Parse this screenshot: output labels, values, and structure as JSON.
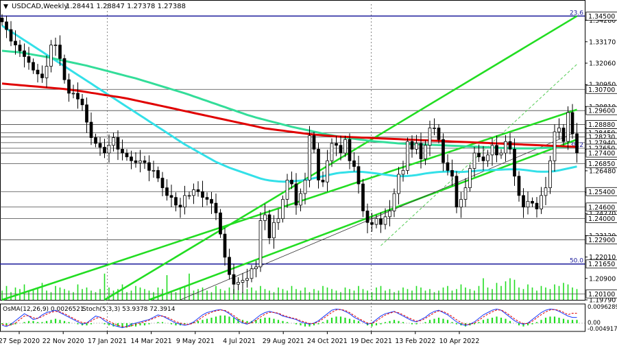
{
  "window": {
    "title_arrow": "▼",
    "symbol": "USDCAD,Weekly",
    "ohlc": "1.28441 1.28847 1.27378 1.27388"
  },
  "colors": {
    "background": "#ffffff",
    "grid": "#c8c8c8",
    "candle": "#000000",
    "ma_red": "#e00000",
    "ma_green": "#33dd99",
    "ma_cyan": "#33e0e8",
    "channel": "#22dd22",
    "fib_line": "#1a1a9a",
    "level_line": "#1a1a1a",
    "volume": "#22dd22",
    "price_box": "#ffffff"
  },
  "chart_data": {
    "type": "candlestick",
    "symbol": "USDCAD",
    "timeframe": "Weekly",
    "ylim": [
      1.1979,
      1.3512
    ],
    "time_labels": [
      "27 Sep 2020",
      "22 Nov 2020",
      "17 Jan 2021",
      "14 Mar 2021",
      "9 May 2021",
      "4 Jul 2021",
      "29 Aug 2021",
      "24 Oct 2021",
      "19 Dec 2021",
      "13 Feb 2022",
      "10 Apr 2022"
    ],
    "price_ticks": [
      "1.34280",
      "1.33170",
      "1.32060",
      "1.30950",
      "1.29810",
      "1.28700",
      "1.27590",
      "1.26480",
      "1.25370",
      "1.24270",
      "1.23120",
      "1.22010",
      "1.20900",
      "1.19790"
    ],
    "levels": [
      {
        "label": "1.34500",
        "value": 1.345
      },
      {
        "label": "1.30700",
        "value": 1.307
      },
      {
        "label": "1.29600",
        "value": 1.296
      },
      {
        "label": "1.28880",
        "value": 1.2888
      },
      {
        "label": "1.28450",
        "value": 1.2845
      },
      {
        "label": "1.28230",
        "value": 1.2823
      },
      {
        "label": "1.27940",
        "value": 1.2794
      },
      {
        "label": "1.27650",
        "value": 1.2765
      },
      {
        "label": "1.27400",
        "value": 1.274
      },
      {
        "label": "1.26850",
        "value": 1.2685
      },
      {
        "label": "1.25400",
        "value": 1.254
      },
      {
        "label": "1.24600",
        "value": 1.246
      },
      {
        "label": "1.24000",
        "value": 1.24
      },
      {
        "label": "1.22900",
        "value": 1.229
      },
      {
        "label": "1.21650",
        "value": 1.2165
      },
      {
        "label": "1.20100",
        "value": 1.201
      }
    ],
    "fib_labels": [
      {
        "label": "23.6",
        "value": 1.345
      },
      {
        "label": "38.2",
        "value": 1.2765
      },
      {
        "label": "50.0",
        "value": 1.2165
      }
    ],
    "closes": [
      1.342,
      1.338,
      1.332,
      1.33,
      1.327,
      1.324,
      1.321,
      1.317,
      1.315,
      1.313,
      1.319,
      1.33,
      1.33,
      1.323,
      1.312,
      1.305,
      1.305,
      1.302,
      1.299,
      1.29,
      1.282,
      1.279,
      1.277,
      1.274,
      1.278,
      1.282,
      1.276,
      1.274,
      1.272,
      1.27,
      1.269,
      1.27,
      1.269,
      1.265,
      1.265,
      1.261,
      1.256,
      1.252,
      1.251,
      1.247,
      1.246,
      1.252,
      1.252,
      1.255,
      1.254,
      1.251,
      1.25,
      1.248,
      1.243,
      1.232,
      1.22,
      1.211,
      1.206,
      1.207,
      1.208,
      1.209,
      1.214,
      1.215,
      1.239,
      1.242,
      1.23,
      1.238,
      1.24,
      1.25,
      1.26,
      1.258,
      1.247,
      1.253,
      1.26,
      1.283,
      1.276,
      1.26,
      1.259,
      1.27,
      1.279,
      1.278,
      1.274,
      1.281,
      1.27,
      1.267,
      1.258,
      1.244,
      1.238,
      1.237,
      1.24,
      1.237,
      1.241,
      1.244,
      1.253,
      1.263,
      1.265,
      1.28,
      1.276,
      1.279,
      1.271,
      1.278,
      1.287,
      1.287,
      1.281,
      1.269,
      1.265,
      1.262,
      1.246,
      1.25,
      1.256,
      1.266,
      1.274,
      1.272,
      1.27,
      1.273,
      1.278,
      1.273,
      1.274,
      1.28,
      1.276,
      1.262,
      1.252,
      1.246,
      1.249,
      1.248,
      1.245,
      1.252,
      1.256,
      1.27,
      1.285,
      1.287,
      1.28,
      1.295,
      1.284,
      1.274
    ],
    "ma_red": [
      1.31,
      1.3098,
      1.3096,
      1.3094,
      1.3092,
      1.309,
      1.3088,
      1.3086,
      1.3084,
      1.3082,
      1.308,
      1.3078,
      1.3076,
      1.3074,
      1.3072,
      1.3069,
      1.3066,
      1.3063,
      1.306,
      1.3056,
      1.3052,
      1.3049,
      1.3045,
      1.3041,
      1.3038,
      1.3034,
      1.3031,
      1.3027,
      1.3023,
      1.3018,
      1.3013,
      1.3008,
      1.3003,
      1.2998,
      1.2993,
      1.2988,
      1.2983,
      1.2978,
      1.2973,
      1.2968,
      1.2963,
      1.2958,
      1.2953,
      1.2948,
      1.2943,
      1.2938,
      1.2933,
      1.2928,
      1.2923,
      1.2918,
      1.2913,
      1.2908,
      1.2903,
      1.2898,
      1.2893,
      1.2888,
      1.2883,
      1.2878,
      1.2873,
      1.2868,
      1.2865,
      1.2862,
      1.2859,
      1.2856,
      1.2853,
      1.285,
      1.2847,
      1.2844,
      1.2841,
      1.2838,
      1.2836,
      1.2834,
      1.2832,
      1.283,
      1.2828,
      1.2826,
      1.2825,
      1.2824,
      1.2823,
      1.2822,
      1.2821,
      1.282,
      1.2819,
      1.2818,
      1.2817,
      1.2816,
      1.2815,
      1.2814,
      1.2813,
      1.2812,
      1.2811,
      1.281,
      1.2809,
      1.2808,
      1.2807,
      1.2806,
      1.2805,
      1.2804,
      1.2803,
      1.2802,
      1.2801,
      1.28,
      1.2799,
      1.2798,
      1.2797,
      1.2796,
      1.2795,
      1.2794,
      1.2793,
      1.2792,
      1.2791,
      1.279,
      1.2789,
      1.2788,
      1.2787,
      1.2786,
      1.2785,
      1.2784,
      1.2783,
      1.2782,
      1.2781,
      1.278,
      1.2779,
      1.2778,
      1.2777,
      1.2776,
      1.2775,
      1.2774,
      1.2773,
      1.2772
    ],
    "ma_green": [
      1.327,
      1.3268,
      1.3266,
      1.3264,
      1.3262,
      1.3258,
      1.3254,
      1.325,
      1.3246,
      1.3242,
      1.3238,
      1.3233,
      1.3228,
      1.3223,
      1.3218,
      1.3213,
      1.3208,
      1.3203,
      1.3198,
      1.3193,
      1.3187,
      1.3181,
      1.3175,
      1.3169,
      1.3163,
      1.3157,
      1.3151,
      1.3145,
      1.3139,
      1.3133,
      1.3127,
      1.312,
      1.3113,
      1.3106,
      1.3099,
      1.3092,
      1.3085,
      1.3078,
      1.3071,
      1.3064,
      1.3057,
      1.305,
      1.3042,
      1.3034,
      1.3026,
      1.3018,
      1.301,
      1.3002,
      1.2994,
      1.2986,
      1.2978,
      1.297,
      1.2962,
      1.2954,
      1.2946,
      1.2938,
      1.2931,
      1.2924,
      1.2918,
      1.2912,
      1.2906,
      1.29,
      1.2894,
      1.2888,
      1.2882,
      1.2876,
      1.2871,
      1.2866,
      1.2861,
      1.2856,
      1.2851,
      1.2846,
      1.2841,
      1.2836,
      1.2832,
      1.2828,
      1.2824,
      1.282,
      1.2817,
      1.2814,
      1.2811,
      1.2808,
      1.2805,
      1.2802,
      1.28,
      1.2798,
      1.2796,
      1.2794,
      1.2792,
      1.279,
      1.2789,
      1.2788,
      1.2787,
      1.2786,
      1.2785,
      1.2784,
      1.2783,
      1.2782,
      1.2781,
      1.278,
      1.2779,
      1.2778,
      1.2777,
      1.2776,
      1.2775,
      1.2774,
      1.2773,
      1.2772,
      1.2771,
      1.277,
      1.2769,
      1.2768,
      1.2767,
      1.2766,
      1.2765,
      1.2764,
      1.2764,
      1.2764,
      1.2764,
      1.2764,
      1.2765,
      1.2766,
      1.2767,
      1.2768,
      1.2769,
      1.277,
      1.2771,
      1.2772,
      1.2773,
      1.2773
    ],
    "ma_cyan": [
      1.34,
      1.3385,
      1.337,
      1.3355,
      1.334,
      1.3325,
      1.331,
      1.3295,
      1.328,
      1.3265,
      1.325,
      1.3235,
      1.322,
      1.3205,
      1.319,
      1.3175,
      1.316,
      1.3145,
      1.313,
      1.3115,
      1.31,
      1.3085,
      1.307,
      1.3055,
      1.304,
      1.3025,
      1.301,
      1.2995,
      1.298,
      1.2965,
      1.295,
      1.2935,
      1.292,
      1.2905,
      1.289,
      1.2875,
      1.286,
      1.2845,
      1.283,
      1.2815,
      1.28,
      1.2785,
      1.2772,
      1.2759,
      1.2746,
      1.2733,
      1.272,
      1.2707,
      1.2694,
      1.2684,
      1.2674,
      1.2664,
      1.2656,
      1.2648,
      1.264,
      1.2632,
      1.2624,
      1.2616,
      1.2608,
      1.2602,
      1.2598,
      1.2595,
      1.2593,
      1.2592,
      1.2592,
      1.2593,
      1.2595,
      1.2597,
      1.26,
      1.2605,
      1.261,
      1.2615,
      1.262,
      1.2625,
      1.263,
      1.2635,
      1.2638,
      1.264,
      1.2642,
      1.2643,
      1.2643,
      1.2642,
      1.264,
      1.2637,
      1.2634,
      1.2631,
      1.2628,
      1.2625,
      1.2622,
      1.262,
      1.262,
      1.2621,
      1.2623,
      1.2626,
      1.263,
      1.2634,
      1.2637,
      1.264,
      1.2642,
      1.2643,
      1.2644,
      1.2644,
      1.2643,
      1.2642,
      1.2643,
      1.2645,
      1.2647,
      1.2649,
      1.265,
      1.2651,
      1.2652,
      1.2653,
      1.2654,
      1.2655,
      1.2656,
      1.2656,
      1.2655,
      1.2653,
      1.265,
      1.2647,
      1.2644,
      1.2643,
      1.2643,
      1.2644,
      1.2646,
      1.265,
      1.2655,
      1.266,
      1.2665,
      1.267
    ],
    "volume": [
      0.3,
      0.45,
      0.25,
      0.4,
      0.35,
      0.5,
      0.3,
      0.35,
      0.4,
      0.55,
      0.3,
      0.25,
      0.45,
      0.4,
      0.35,
      0.3,
      0.25,
      0.5,
      0.35,
      0.4,
      0.3,
      0.25,
      0.35,
      0.85,
      0.4,
      0.3,
      0.35,
      0.5,
      0.25,
      0.3,
      0.45,
      0.4,
      0.35,
      0.3,
      0.25,
      0.4,
      0.35,
      0.8,
      0.3,
      0.25,
      0.35,
      0.45,
      0.85,
      0.3,
      0.35,
      0.4,
      0.3,
      0.25,
      0.45,
      0.35,
      0.3,
      0.4,
      0.35,
      0.3,
      0.25,
      0.35,
      0.4,
      0.3,
      0.45,
      0.35,
      0.3,
      0.25,
      0.4,
      0.35,
      0.3,
      0.45,
      0.35,
      0.3,
      0.4,
      0.25,
      0.35,
      0.3,
      0.45,
      0.4,
      0.35,
      0.3,
      0.25,
      0.4,
      0.35,
      0.3,
      0.45,
      0.35,
      0.3,
      0.25,
      0.4,
      0.45,
      0.3,
      0.35,
      0.25,
      0.3,
      0.4,
      0.35,
      0.3,
      0.45,
      0.4,
      0.3,
      0.35,
      0.25,
      0.3,
      0.4,
      0.45,
      0.3,
      0.35,
      0.5,
      0.4,
      0.35,
      0.3,
      0.45,
      0.7,
      0.4,
      0.35,
      0.55,
      0.45,
      0.6,
      0.7,
      0.65,
      0.4,
      0.35,
      0.5,
      0.4,
      0.3,
      0.45,
      0.4,
      0.35,
      0.5,
      0.45,
      0.55,
      0.5,
      0.4,
      0.35
    ],
    "channel_lines": [
      {
        "from": [
          0,
          1.1979
        ],
        "to": [
          129,
          1.2965
        ],
        "style": "solid"
      },
      {
        "from": [
          33,
          1.1979
        ],
        "to": [
          129,
          1.281
        ],
        "style": "solid"
      },
      {
        "from": [
          23,
          1.1979
        ],
        "to": [
          129,
          1.345
        ],
        "style": "solid"
      },
      {
        "from": [
          85,
          1.226
        ],
        "to": [
          129,
          1.32
        ],
        "style": "dashed"
      }
    ],
    "indicators": {
      "osma_label": "OsMA(12,26,9) 0.0026521",
      "stoch_label": "Stoch(5,3,3) 53.9378 72.3914",
      "ticks": [
        "0.0096289",
        "0.00",
        "-0.0049174"
      ],
      "stoch_main": [
        20,
        15,
        25,
        40,
        55,
        70,
        60,
        45,
        50,
        65,
        75,
        80,
        85,
        75,
        65,
        55,
        45,
        35,
        25,
        30,
        45,
        60,
        55,
        40,
        30,
        20,
        15,
        10,
        15,
        25,
        30,
        35,
        40,
        45,
        55,
        65,
        60,
        50,
        40,
        30,
        25,
        20,
        25,
        35,
        50,
        65,
        75,
        80,
        85,
        88,
        82,
        70,
        55,
        40,
        30,
        25,
        35,
        50,
        65,
        75,
        80,
        75,
        70,
        60,
        55,
        50,
        45,
        35,
        30,
        25,
        30,
        40,
        55,
        70,
        85,
        90,
        88,
        80,
        70,
        55,
        45,
        35,
        25,
        30,
        45,
        60,
        70,
        75,
        80,
        70,
        60,
        50,
        40,
        35,
        45,
        55,
        70,
        80,
        85,
        75,
        65,
        50,
        35,
        25,
        20,
        25,
        35,
        50,
        65,
        75,
        85,
        90,
        85,
        70,
        55,
        40,
        30,
        25,
        30,
        45,
        60,
        75,
        85,
        90,
        88,
        80,
        70,
        60,
        54,
        54
      ],
      "stoch_signal": [
        25,
        20,
        22,
        30,
        45,
        60,
        62,
        52,
        50,
        58,
        68,
        76,
        80,
        78,
        70,
        60,
        50,
        40,
        32,
        30,
        38,
        50,
        55,
        48,
        38,
        28,
        20,
        15,
        14,
        18,
        25,
        30,
        36,
        42,
        50,
        58,
        60,
        55,
        46,
        36,
        30,
        25,
        24,
        30,
        42,
        56,
        68,
        76,
        82,
        86,
        84,
        75,
        62,
        48,
        36,
        28,
        30,
        42,
        56,
        68,
        76,
        76,
        72,
        64,
        58,
        52,
        48,
        40,
        34,
        28,
        28,
        35,
        48,
        62,
        76,
        86,
        88,
        84,
        75,
        62,
        50,
        40,
        30,
        28,
        38,
        52,
        64,
        72,
        78,
        74,
        65,
        55,
        46,
        38,
        40,
        50,
        62,
        74,
        82,
        80,
        70,
        58,
        44,
        32,
        24,
        24,
        30,
        42,
        56,
        68,
        78,
        86,
        86,
        76,
        62,
        48,
        36,
        28,
        28,
        38,
        52,
        66,
        78,
        86,
        88,
        84,
        76,
        66,
        72,
        72
      ],
      "osma_hist": [
        -0.001,
        -0.002,
        -0.002,
        -0.001,
        0.0,
        0.001,
        0.002,
        0.002,
        0.001,
        0.001,
        0.002,
        0.003,
        0.004,
        0.003,
        0.002,
        0.001,
        0.0,
        -0.001,
        -0.002,
        -0.002,
        -0.001,
        0.0,
        0.0,
        -0.001,
        -0.002,
        -0.003,
        -0.003,
        -0.004,
        -0.004,
        -0.003,
        -0.003,
        -0.002,
        -0.002,
        -0.001,
        0.0,
        0.001,
        0.001,
        0.0,
        -0.001,
        -0.002,
        -0.002,
        -0.001,
        0.0,
        0.001,
        0.002,
        0.003,
        0.004,
        0.005,
        0.006,
        0.007,
        0.007,
        0.006,
        0.005,
        0.004,
        0.003,
        0.002,
        0.002,
        0.003,
        0.004,
        0.005,
        0.005,
        0.004,
        0.003,
        0.002,
        0.001,
        0.0,
        -0.001,
        -0.002,
        -0.003,
        -0.003,
        -0.002,
        -0.001,
        0.001,
        0.003,
        0.005,
        0.006,
        0.006,
        0.005,
        0.004,
        0.003,
        0.002,
        0.0,
        -0.002,
        -0.003,
        -0.002,
        -0.001,
        0.001,
        0.002,
        0.003,
        0.002,
        0.001,
        0.0,
        -0.001,
        -0.001,
        0.0,
        0.001,
        0.003,
        0.004,
        0.005,
        0.004,
        0.003,
        0.001,
        -0.001,
        -0.002,
        -0.003,
        -0.002,
        -0.001,
        0.001,
        0.003,
        0.004,
        0.005,
        0.006,
        0.005,
        0.004,
        0.002,
        0.0,
        -0.002,
        -0.003,
        -0.002,
        -0.001,
        0.001,
        0.003,
        0.005,
        0.006,
        0.006,
        0.005,
        0.004,
        0.003,
        0.003,
        0.003
      ]
    }
  }
}
